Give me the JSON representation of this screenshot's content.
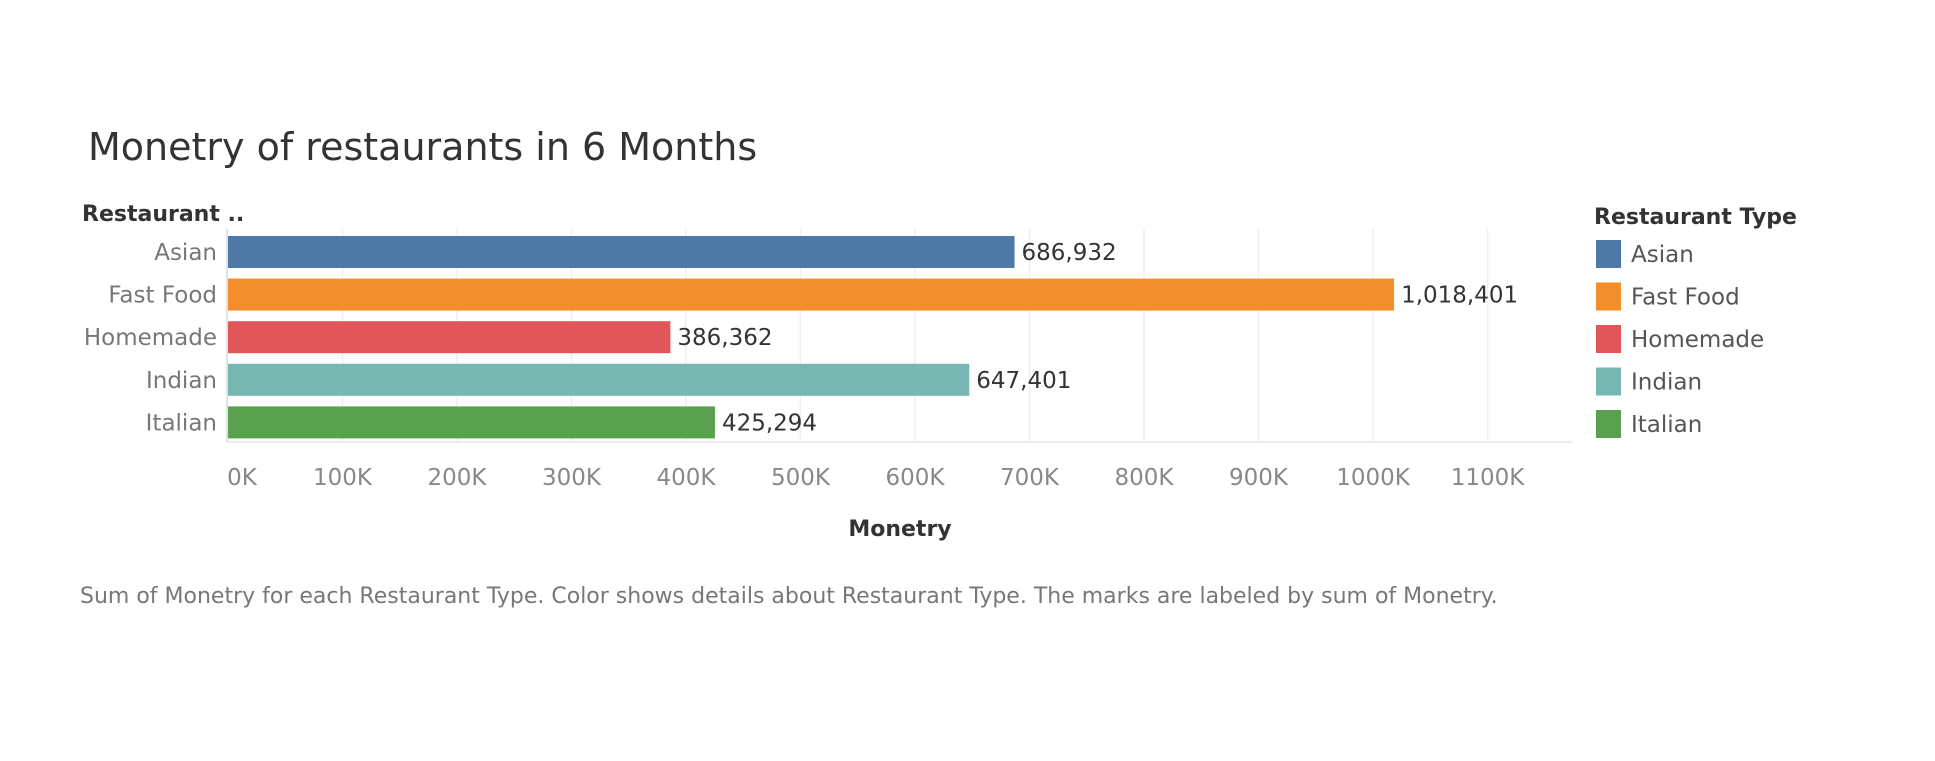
{
  "chart_data": {
    "type": "bar",
    "orientation": "horizontal",
    "title": "Monetry of restaurants in 6 Months",
    "row_header": "Restaurant ..",
    "categories": [
      "Asian",
      "Fast Food",
      "Homemade",
      "Indian",
      "Italian"
    ],
    "values": [
      686932,
      1018401,
      386362,
      647401,
      425294
    ],
    "data_labels": [
      "686,932",
      "1,018,401",
      "386,362",
      "647,401",
      "425,294"
    ],
    "colors": [
      "#4e79a7",
      "#f28e2b",
      "#e15759",
      "#76b7b2",
      "#59a14f"
    ],
    "xlabel": "Monetry",
    "ylabel": "",
    "x_ticks": [
      0,
      100000,
      200000,
      300000,
      400000,
      500000,
      600000,
      700000,
      800000,
      900000,
      1000000,
      1100000
    ],
    "x_tick_labels": [
      "0K",
      "100K",
      "200K",
      "300K",
      "400K",
      "500K",
      "600K",
      "700K",
      "800K",
      "900K",
      "1000K",
      "1100K"
    ],
    "xlim": [
      0,
      1175000
    ],
    "grid": true,
    "legend": {
      "title": "Restaurant Type",
      "placement": "right",
      "entries": [
        "Asian",
        "Fast Food",
        "Homemade",
        "Indian",
        "Italian"
      ]
    },
    "caption": "Sum of Monetry for each Restaurant Type.  Color shows details about Restaurant Type.  The marks are labeled by sum of Monetry."
  }
}
